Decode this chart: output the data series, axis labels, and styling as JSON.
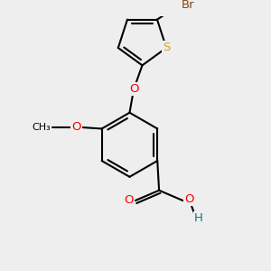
{
  "background_color": "#eeeeee",
  "bond_color": "#000000",
  "bond_width": 1.5,
  "atom_colors": {
    "Br": "#8B4513",
    "S": "#DAA520",
    "O": "#FF0000",
    "C": "#000000",
    "H": "#008080"
  },
  "font_size": 9.5,
  "figsize": [
    3.0,
    3.0
  ],
  "dpi": 100
}
